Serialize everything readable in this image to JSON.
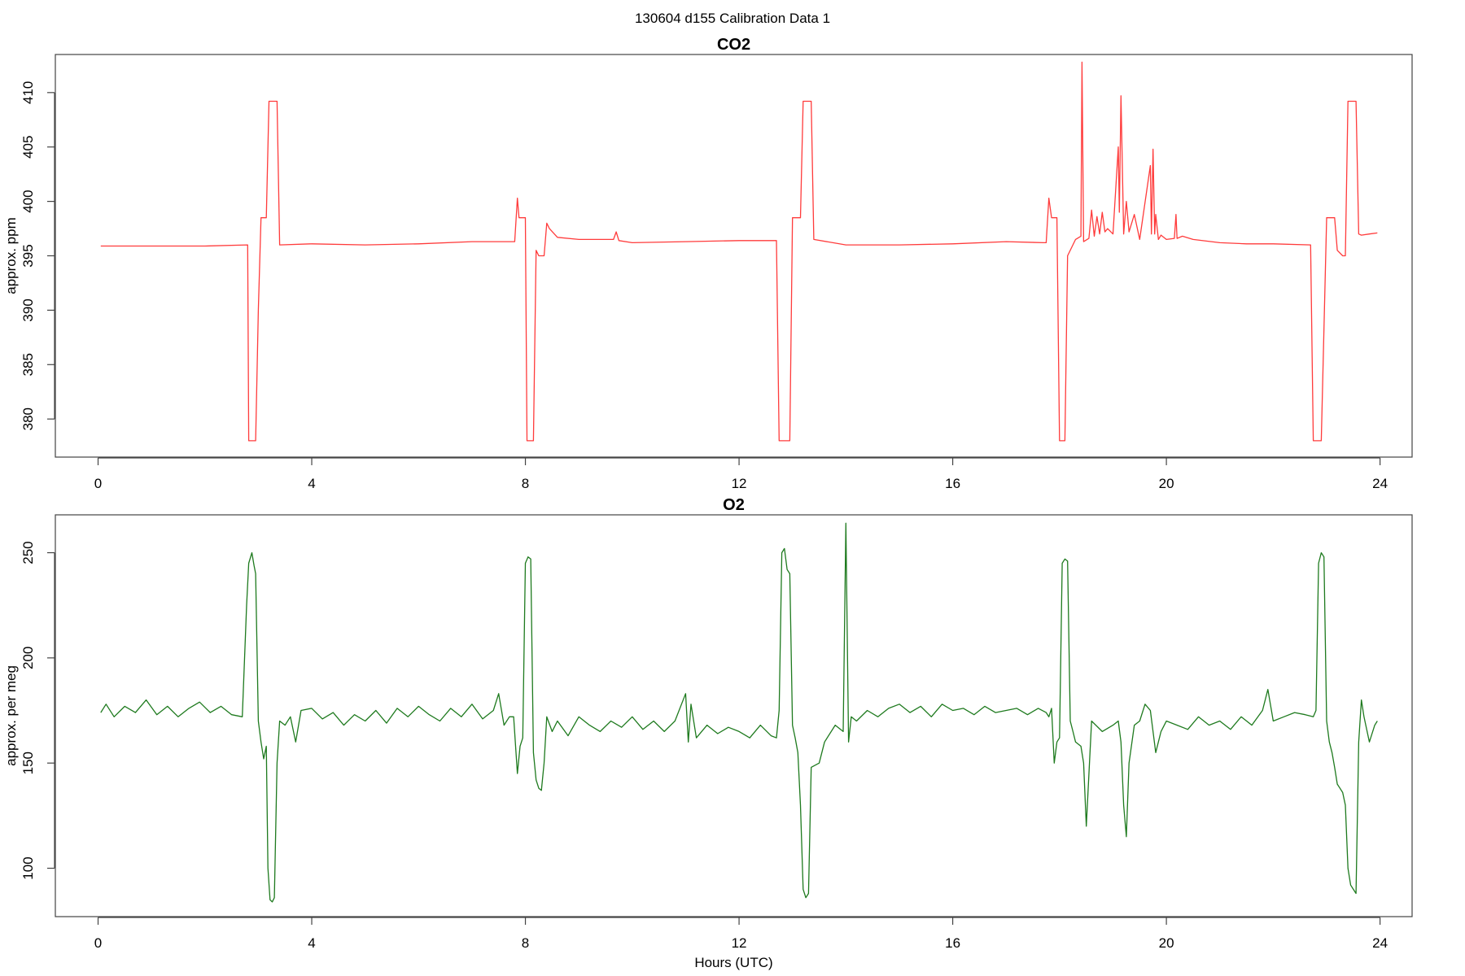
{
  "main_title": "130604   d155   Calibration Data 1",
  "chart_data": [
    {
      "type": "line",
      "title": "CO2",
      "xlabel": "",
      "ylabel": "approx. ppm",
      "xlim": [
        -0.8,
        24.6
      ],
      "ylim": [
        376.5,
        413.5
      ],
      "x_ticks": [
        0,
        4,
        8,
        12,
        16,
        20,
        24
      ],
      "y_ticks": [
        380,
        385,
        390,
        395,
        400,
        405,
        410
      ],
      "color": "#ff3b3b",
      "series": [
        {
          "x": [
            0.05,
            1.0,
            2.0,
            2.8,
            2.82,
            2.88,
            2.95,
            3.0,
            3.05,
            3.1,
            3.15,
            3.2,
            3.3,
            3.35,
            3.4,
            4.0,
            5.0,
            6.0,
            7.0,
            7.8,
            7.85,
            7.88,
            7.9,
            7.95,
            8.0,
            8.03,
            8.05,
            8.15,
            8.2,
            8.25,
            8.35,
            8.4,
            8.45,
            8.6,
            9.0,
            9.65,
            9.7,
            9.75,
            10.0,
            11.0,
            12.0,
            12.7,
            12.75,
            12.8,
            12.95,
            13.0,
            13.1,
            13.15,
            13.2,
            13.3,
            13.35,
            13.4,
            14.0,
            15.0,
            16.0,
            17.0,
            17.7,
            17.75,
            17.8,
            17.85,
            17.9,
            17.95,
            18.0,
            18.05,
            18.1,
            18.15,
            18.3,
            18.4,
            18.42,
            18.45,
            18.55,
            18.6,
            18.65,
            18.7,
            18.75,
            18.8,
            18.85,
            18.9,
            19.0,
            19.1,
            19.12,
            19.15,
            19.2,
            19.25,
            19.3,
            19.4,
            19.5,
            19.7,
            19.72,
            19.75,
            19.78,
            19.8,
            19.85,
            19.9,
            20.0,
            20.15,
            20.18,
            20.2,
            20.3,
            20.5,
            21.0,
            21.5,
            22.0,
            22.7,
            22.75,
            22.8,
            22.9,
            23.0,
            23.1,
            23.15,
            23.2,
            23.3,
            23.35,
            23.4,
            23.45,
            23.55,
            23.6,
            23.65,
            23.8,
            23.95
          ],
          "y": [
            395.9,
            395.9,
            395.9,
            396.0,
            378.0,
            378.0,
            378.0,
            390.0,
            398.5,
            398.5,
            398.5,
            409.2,
            409.2,
            409.2,
            396.0,
            396.1,
            396.0,
            396.1,
            396.3,
            396.3,
            400.3,
            398.5,
            398.5,
            398.5,
            398.5,
            378.0,
            378.0,
            378.0,
            395.5,
            395.0,
            395.0,
            398.0,
            397.5,
            396.7,
            396.5,
            396.5,
            397.2,
            396.4,
            396.2,
            396.3,
            396.4,
            396.4,
            378.0,
            378.0,
            378.0,
            398.5,
            398.5,
            398.5,
            409.2,
            409.2,
            409.2,
            396.5,
            396.0,
            396.0,
            396.1,
            396.3,
            396.2,
            396.2,
            400.3,
            398.5,
            398.5,
            398.5,
            378.0,
            378.0,
            378.0,
            395.0,
            396.5,
            396.8,
            412.8,
            396.3,
            396.6,
            399.2,
            396.8,
            398.6,
            397.0,
            399.0,
            397.2,
            397.5,
            397.0,
            405.0,
            399.0,
            409.7,
            397.0,
            400.0,
            397.2,
            398.8,
            396.5,
            403.3,
            397.0,
            404.8,
            397.0,
            398.8,
            396.5,
            396.9,
            396.5,
            396.6,
            398.8,
            396.6,
            396.8,
            396.5,
            396.2,
            396.1,
            396.1,
            396.0,
            378.0,
            378.0,
            378.0,
            398.5,
            398.5,
            398.5,
            395.5,
            395.0,
            395.0,
            409.2,
            409.2,
            409.2,
            397.0,
            396.9,
            397.0,
            397.1
          ]
        }
      ]
    },
    {
      "type": "line",
      "title": "O2",
      "xlabel": "Hours (UTC)",
      "ylabel": "approx. per meg",
      "xlim": [
        -0.8,
        24.6
      ],
      "ylim": [
        77,
        268
      ],
      "x_ticks": [
        0,
        4,
        8,
        12,
        16,
        20,
        24
      ],
      "y_ticks": [
        100,
        150,
        200,
        250
      ],
      "color": "#1e7a1e",
      "series": [
        {
          "x": [
            0.05,
            0.15,
            0.3,
            0.5,
            0.7,
            0.9,
            1.1,
            1.3,
            1.5,
            1.7,
            1.9,
            2.1,
            2.3,
            2.5,
            2.7,
            2.78,
            2.82,
            2.88,
            2.92,
            2.95,
            3.0,
            3.05,
            3.1,
            3.15,
            3.18,
            3.22,
            3.26,
            3.3,
            3.35,
            3.4,
            3.5,
            3.6,
            3.7,
            3.8,
            4.0,
            4.2,
            4.4,
            4.6,
            4.8,
            5.0,
            5.2,
            5.4,
            5.6,
            5.8,
            6.0,
            6.2,
            6.4,
            6.6,
            6.8,
            7.0,
            7.2,
            7.4,
            7.5,
            7.6,
            7.7,
            7.78,
            7.85,
            7.9,
            7.95,
            8.0,
            8.05,
            8.1,
            8.15,
            8.2,
            8.25,
            8.3,
            8.35,
            8.4,
            8.5,
            8.6,
            8.8,
            9.0,
            9.2,
            9.4,
            9.6,
            9.8,
            10.0,
            10.2,
            10.4,
            10.6,
            10.8,
            11.0,
            11.05,
            11.1,
            11.2,
            11.4,
            11.6,
            11.8,
            12.0,
            12.2,
            12.4,
            12.6,
            12.7,
            12.75,
            12.8,
            12.85,
            12.9,
            12.95,
            13.0,
            13.05,
            13.1,
            13.15,
            13.2,
            13.25,
            13.3,
            13.35,
            13.5,
            13.6,
            13.8,
            13.95,
            14.0,
            14.05,
            14.1,
            14.2,
            14.4,
            14.6,
            14.8,
            15.0,
            15.2,
            15.4,
            15.6,
            15.8,
            16.0,
            16.2,
            16.4,
            16.6,
            16.8,
            17.0,
            17.2,
            17.4,
            17.6,
            17.75,
            17.8,
            17.85,
            17.9,
            17.95,
            18.0,
            18.05,
            18.1,
            18.15,
            18.2,
            18.25,
            18.3,
            18.4,
            18.45,
            18.5,
            18.6,
            18.8,
            19.0,
            19.1,
            19.15,
            19.2,
            19.25,
            19.3,
            19.4,
            19.5,
            19.6,
            19.7,
            19.8,
            19.9,
            20.0,
            20.2,
            20.4,
            20.6,
            20.8,
            21.0,
            21.2,
            21.4,
            21.6,
            21.8,
            21.9,
            22.0,
            22.2,
            22.4,
            22.6,
            22.75,
            22.8,
            22.85,
            22.9,
            22.95,
            23.0,
            23.05,
            23.1,
            23.15,
            23.2,
            23.25,
            23.3,
            23.35,
            23.4,
            23.45,
            23.5,
            23.55,
            23.6,
            23.65,
            23.7,
            23.8,
            23.9,
            23.95
          ],
          "y": [
            174,
            178,
            172,
            177,
            174,
            180,
            173,
            177,
            172,
            176,
            179,
            174,
            177,
            173,
            172,
            225,
            245,
            250,
            244,
            240,
            170,
            160,
            152,
            158,
            100,
            85,
            84,
            86,
            150,
            170,
            168,
            172,
            160,
            175,
            176,
            171,
            174,
            168,
            173,
            170,
            175,
            169,
            176,
            172,
            177,
            173,
            170,
            176,
            172,
            178,
            171,
            175,
            183,
            168,
            172,
            172,
            145,
            158,
            162,
            245,
            248,
            247,
            155,
            142,
            138,
            137,
            150,
            172,
            165,
            170,
            163,
            172,
            168,
            165,
            170,
            167,
            172,
            166,
            170,
            165,
            170,
            183,
            160,
            178,
            162,
            168,
            164,
            167,
            165,
            162,
            168,
            163,
            162,
            175,
            250,
            252,
            242,
            240,
            168,
            162,
            155,
            130,
            90,
            86,
            88,
            148,
            150,
            160,
            168,
            165,
            264,
            160,
            172,
            170,
            175,
            172,
            176,
            178,
            174,
            177,
            172,
            178,
            175,
            176,
            173,
            177,
            174,
            175,
            176,
            173,
            176,
            174,
            172,
            176,
            150,
            160,
            162,
            245,
            247,
            246,
            170,
            165,
            160,
            158,
            150,
            120,
            170,
            165,
            168,
            170,
            160,
            130,
            115,
            150,
            168,
            170,
            178,
            175,
            155,
            165,
            170,
            168,
            166,
            172,
            168,
            170,
            166,
            172,
            168,
            175,
            185,
            170,
            172,
            174,
            173,
            172,
            175,
            245,
            250,
            248,
            170,
            160,
            155,
            148,
            140,
            138,
            136,
            130,
            100,
            92,
            90,
            88,
            160,
            180,
            172,
            160,
            168,
            170
          ]
        }
      ]
    }
  ]
}
